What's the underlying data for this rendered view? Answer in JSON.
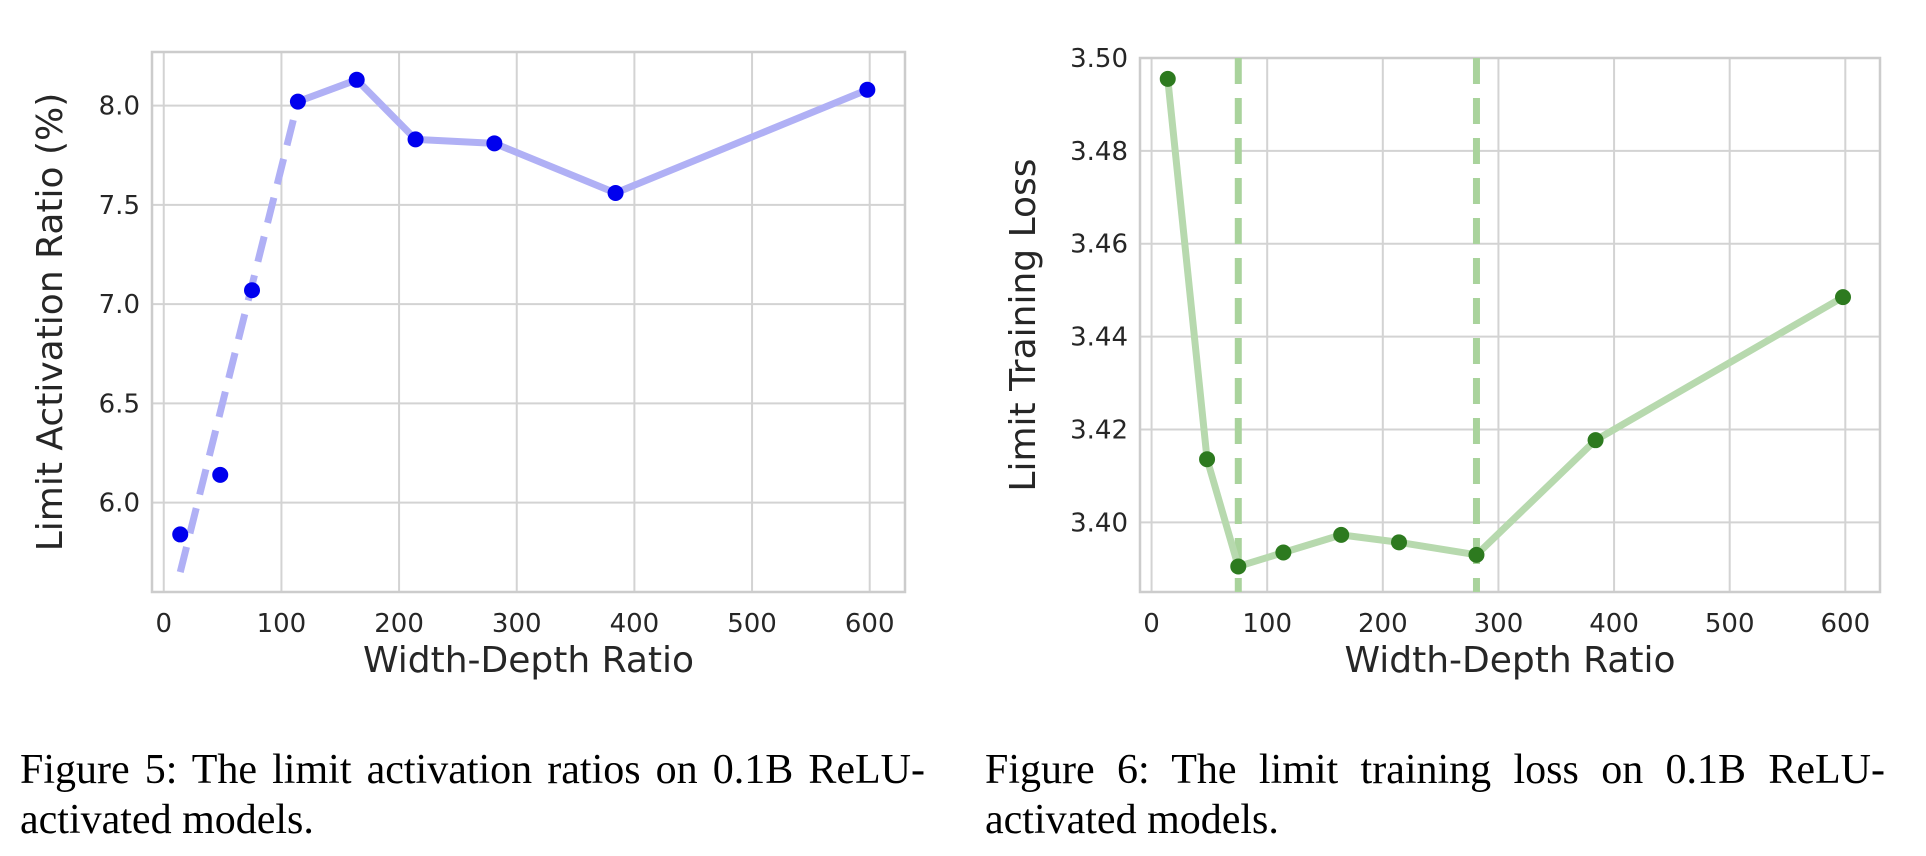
{
  "chart_data": [
    {
      "type": "line",
      "xlabel": "Width-Depth Ratio",
      "ylabel": "Limit Activation Ratio (%)",
      "xlim": [
        -10,
        630
      ],
      "ylim": [
        5.55,
        8.27
      ],
      "xticks": [
        0,
        100,
        200,
        300,
        400,
        500,
        600
      ],
      "yticks": [
        6.0,
        6.5,
        7.0,
        7.5,
        8.0
      ],
      "ytick_labels": [
        "6.0",
        "6.5",
        "7.0",
        "7.5",
        "8.0"
      ],
      "grid": true,
      "series": [
        {
          "x": [
            14,
            48,
            75,
            114,
            164,
            214,
            281,
            384,
            598
          ],
          "y": [
            5.84,
            6.14,
            7.07,
            8.02,
            8.13,
            7.83,
            7.81,
            7.56,
            8.08
          ],
          "marker_color": "#0000ee"
        }
      ],
      "fit_line": {
        "x": [
          14,
          114,
          164,
          214,
          281,
          384,
          598
        ],
        "y": [
          5.65,
          8.02,
          8.13,
          7.83,
          7.81,
          7.56,
          8.08
        ],
        "dashed_until_x": 114,
        "color": "#b0b0f5"
      }
    },
    {
      "type": "line",
      "xlabel": "Width-Depth Ratio",
      "ylabel": "Limit Training Loss",
      "xlim": [
        -10,
        630
      ],
      "ylim": [
        3.385,
        3.5
      ],
      "xticks": [
        0,
        100,
        200,
        300,
        400,
        500,
        600
      ],
      "yticks": [
        3.4,
        3.42,
        3.44,
        3.46,
        3.48,
        3.5
      ],
      "ytick_labels": [
        "3.40",
        "3.42",
        "3.44",
        "3.46",
        "3.48",
        "3.50"
      ],
      "grid": true,
      "series": [
        {
          "x": [
            14,
            48,
            75,
            114,
            164,
            214,
            281,
            384,
            598
          ],
          "y": [
            3.4955,
            3.4136,
            3.3905,
            3.3935,
            3.3973,
            3.3957,
            3.393,
            3.4177,
            3.4485
          ],
          "marker_color": "#2d7a1f",
          "line_color": "#b7d9ae"
        }
      ],
      "vlines": [
        75,
        281
      ],
      "vline_color": "#a9d39c"
    }
  ],
  "captions": {
    "fig5": "Figure 5:  The limit activation ratios on 0.1B ReLU-activated models.",
    "fig6": "Figure 6: The limit training loss on 0.1B ReLU-activated models."
  }
}
